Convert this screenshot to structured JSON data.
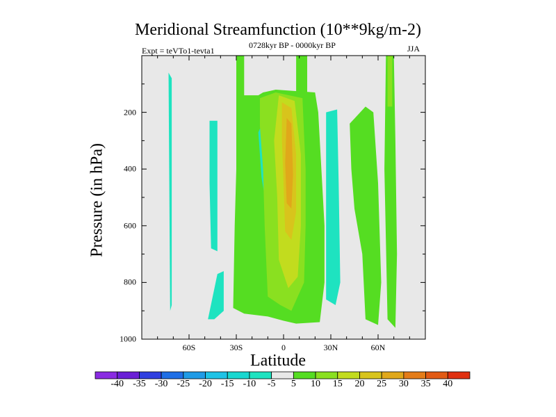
{
  "chart_data": {
    "type": "contour",
    "title": "Meridional Streamfunction (10**9kg/m-2)",
    "left_label": "Expt = teVTo1-tevta1",
    "center_label": "0728kyr BP - 0000kyr BP",
    "right_label": "JJA",
    "xlabel": "Latitude",
    "ylabel": "Pressure (in hPa)",
    "x_range": [
      -90,
      90
    ],
    "y_range": [
      1000,
      0
    ],
    "x_ticks": [
      {
        "value": -60,
        "label": "60S"
      },
      {
        "value": -30,
        "label": "30S"
      },
      {
        "value": 0,
        "label": "0"
      },
      {
        "value": 30,
        "label": "30N"
      },
      {
        "value": 60,
        "label": "60N"
      }
    ],
    "y_ticks": [
      {
        "value": 200,
        "label": "200"
      },
      {
        "value": 400,
        "label": "400"
      },
      {
        "value": 600,
        "label": "600"
      },
      {
        "value": 800,
        "label": "800"
      },
      {
        "value": 1000,
        "label": "1000"
      }
    ],
    "contour_levels": [
      -40,
      -35,
      -30,
      -25,
      -20,
      -15,
      -10,
      -5,
      5,
      10,
      15,
      20,
      25,
      30,
      35,
      40
    ],
    "colorbar_labels": [
      "-40",
      "-35",
      "-30",
      "-25",
      "-20",
      "-15",
      "-10",
      "-5",
      "5",
      "10",
      "15",
      "20",
      "25",
      "30",
      "35",
      "40"
    ],
    "colors": [
      "#8a2be2",
      "#6a1fd6",
      "#2f3fe0",
      "#1f6fe6",
      "#1f9be6",
      "#1ec3e6",
      "#18d8d0",
      "#1ee3c0",
      "#e8e8e8",
      "#55dd22",
      "#8ae020",
      "#c2dc1e",
      "#d8c41c",
      "#e0a81a",
      "#e47c18",
      "#e25a14",
      "#e03010"
    ],
    "regions": [
      {
        "name": "neg-70s",
        "level_index": 7,
        "points": [
          [
            -73,
            60
          ],
          [
            -72,
            900
          ],
          [
            -71,
            880
          ],
          [
            -71,
            80
          ]
        ]
      },
      {
        "name": "neg-40s-upper",
        "level_index": 7,
        "points": [
          [
            -47,
            230
          ],
          [
            -42,
            230
          ],
          [
            -42,
            690
          ],
          [
            -46,
            680
          ],
          [
            -47,
            450
          ]
        ]
      },
      {
        "name": "neg-40s-lower",
        "level_index": 7,
        "points": [
          [
            -48,
            930
          ],
          [
            -42,
            770
          ],
          [
            -38,
            760
          ],
          [
            -38,
            900
          ],
          [
            -44,
            930
          ]
        ]
      },
      {
        "name": "pos-main",
        "level_index": 9,
        "points": [
          [
            -30,
            0
          ],
          [
            -25,
            0
          ],
          [
            -25,
            140
          ],
          [
            -16,
            140
          ],
          [
            -13,
            130
          ],
          [
            -5,
            120
          ],
          [
            20,
            130
          ],
          [
            22,
            200
          ],
          [
            24,
            400
          ],
          [
            26,
            600
          ],
          [
            26,
            800
          ],
          [
            23,
            940
          ],
          [
            8,
            945
          ],
          [
            0,
            935
          ],
          [
            -10,
            920
          ],
          [
            -25,
            910
          ],
          [
            -32,
            890
          ],
          [
            -31,
            600
          ],
          [
            -30,
            400
          ],
          [
            -30,
            150
          ]
        ]
      },
      {
        "name": "pos-0-spike",
        "level_index": 9,
        "points": [
          [
            8,
            0
          ],
          [
            15,
            0
          ],
          [
            15,
            130
          ],
          [
            8,
            130
          ]
        ]
      },
      {
        "name": "neg-10s-pocket",
        "level_index": 7,
        "points": [
          [
            -16,
            270
          ],
          [
            -10,
            200
          ],
          [
            -4,
            160
          ],
          [
            -1,
            170
          ],
          [
            -1,
            320
          ],
          [
            -5,
            480
          ],
          [
            -10,
            560
          ],
          [
            -14,
            430
          ]
        ]
      },
      {
        "name": "neg-30n",
        "level_index": 7,
        "points": [
          [
            27,
            200
          ],
          [
            34,
            190
          ],
          [
            35,
            450
          ],
          [
            36,
            800
          ],
          [
            33,
            880
          ],
          [
            27,
            860
          ]
        ]
      },
      {
        "name": "pos-50n",
        "level_index": 9,
        "points": [
          [
            42,
            240
          ],
          [
            52,
            180
          ],
          [
            57,
            200
          ],
          [
            60,
            450
          ],
          [
            62,
            800
          ],
          [
            60,
            950
          ],
          [
            52,
            930
          ],
          [
            50,
            700
          ],
          [
            45,
            540
          ],
          [
            43,
            400
          ]
        ]
      },
      {
        "name": "pos-60n-col",
        "level_index": 9,
        "points": [
          [
            65,
            0
          ],
          [
            70,
            0
          ],
          [
            71,
            300
          ],
          [
            72,
            700
          ],
          [
            71,
            960
          ],
          [
            66,
            930
          ],
          [
            64,
            400
          ]
        ]
      },
      {
        "name": "lvl10-main",
        "level_index": 10,
        "points": [
          [
            -15,
            150
          ],
          [
            -5,
            130
          ],
          [
            12,
            150
          ],
          [
            14,
            400
          ],
          [
            14,
            600
          ],
          [
            13,
            800
          ],
          [
            5,
            900
          ],
          [
            -2,
            880
          ],
          [
            -10,
            850
          ],
          [
            -12,
            600
          ],
          [
            -13,
            400
          ],
          [
            -15,
            250
          ]
        ]
      },
      {
        "name": "lvl10-pocket-60n",
        "level_index": 10,
        "points": [
          [
            66,
            0
          ],
          [
            69,
            0
          ],
          [
            69,
            180
          ],
          [
            66,
            180
          ]
        ]
      },
      {
        "name": "lvl11-main",
        "level_index": 11,
        "points": [
          [
            -3,
            140
          ],
          [
            7,
            160
          ],
          [
            11,
            350
          ],
          [
            11,
            600
          ],
          [
            9,
            780
          ],
          [
            3,
            820
          ],
          [
            -3,
            720
          ],
          [
            -4,
            500
          ],
          [
            -6,
            300
          ]
        ]
      },
      {
        "name": "lvl12-main",
        "level_index": 12,
        "points": [
          [
            -1,
            165
          ],
          [
            5,
            185
          ],
          [
            8,
            350
          ],
          [
            8,
            550
          ],
          [
            5,
            650
          ],
          [
            1,
            620
          ],
          [
            0,
            450
          ],
          [
            -1,
            300
          ]
        ]
      },
      {
        "name": "lvl13-main",
        "level_index": 13,
        "points": [
          [
            2,
            220
          ],
          [
            5,
            240
          ],
          [
            6,
            420
          ],
          [
            5,
            540
          ],
          [
            2,
            520
          ],
          [
            1,
            380
          ]
        ]
      }
    ]
  }
}
